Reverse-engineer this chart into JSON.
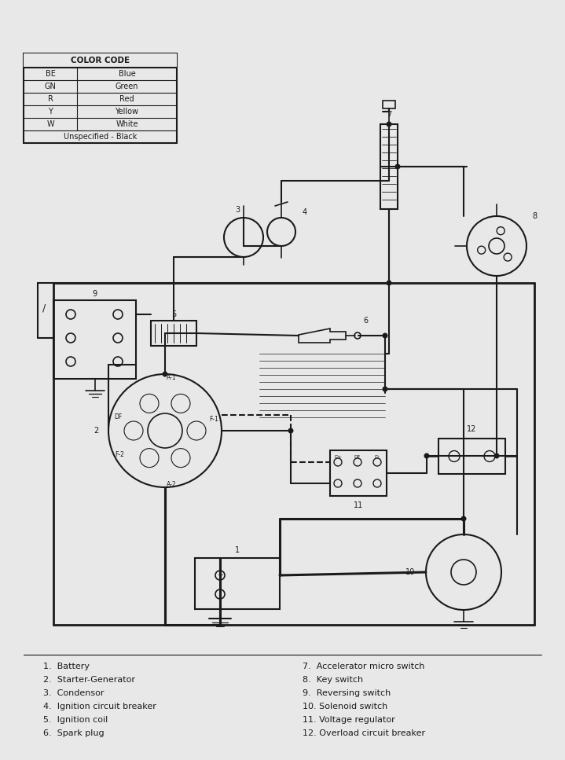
{
  "bg_color": "#e8e8e8",
  "line_color": "#1a1a1a",
  "color_table_rows": [
    [
      "BE",
      "Blue"
    ],
    [
      "GN",
      "Green"
    ],
    [
      "R",
      "Red"
    ],
    [
      "Y",
      "Yellow"
    ],
    [
      "W",
      "White"
    ],
    [
      "Unspecified - Black",
      ""
    ]
  ],
  "legend_left": [
    "1.  Battery",
    "2.  Starter-Generator",
    "3.  Condensor",
    "4.  Ignition circuit breaker",
    "5.  Ignition coil",
    "6.  Spark plug"
  ],
  "legend_right": [
    "7.  Accelerator micro switch",
    "8.  Key switch",
    "9.  Reversing switch",
    "10. Solenoid switch",
    "11. Voltage regulator",
    "12. Overload circuit breaker"
  ]
}
